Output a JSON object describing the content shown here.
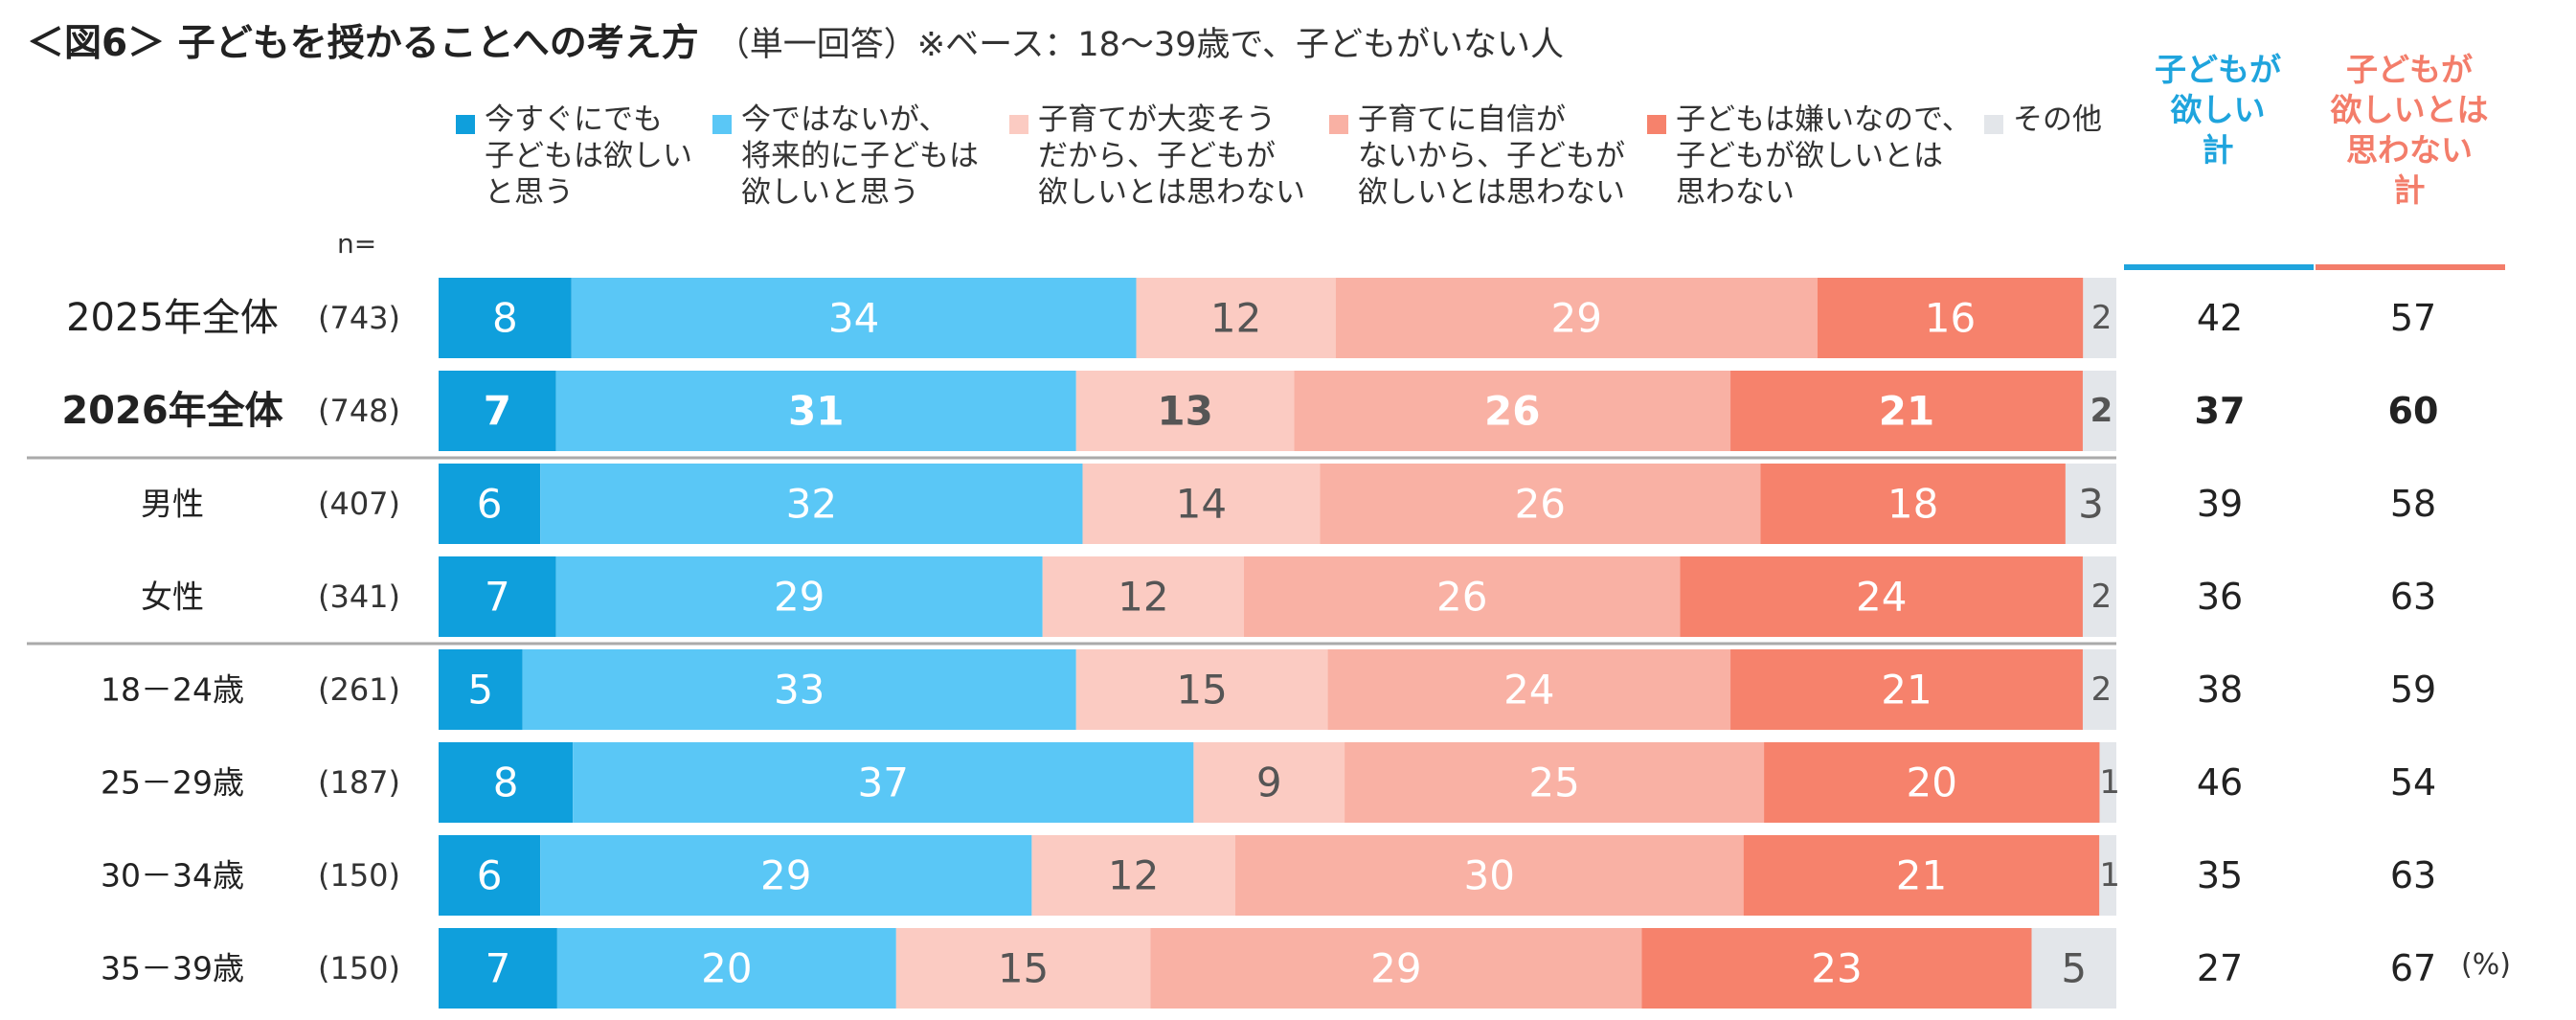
{
  "title": {
    "main": "＜図6＞ 子どもを授かることへの考え方",
    "sub": "（単一回答）※ベース：18〜39歳で、子どもがいない人"
  },
  "n_label": "n=",
  "unit_label": "(%)",
  "totals_headers": {
    "want": "子どもが\n欲しい\n計",
    "not_want": "子どもが\n欲しいとは\n思わない\n計"
  },
  "colors": {
    "seg1": "#0f9fdc",
    "seg2": "#5ac7f6",
    "seg3": "#fbcbc2",
    "seg4": "#f9b1a4",
    "seg5": "#f6826c",
    "seg6": "#e3e6ea",
    "want_header": "#1fa4dd",
    "not_want_header": "#f37d6a",
    "divider": "#aaaaaa"
  },
  "legend": [
    {
      "label": "今すぐにでも\n子どもは欲しい\nと思う",
      "icon": "square-swatch"
    },
    {
      "label": "今ではないが、\n将来的に子どもは\n欲しいと思う",
      "icon": "square-swatch"
    },
    {
      "label": "子育てが大変そう\nだから、子どもが\n欲しいとは思わない",
      "icon": "square-swatch"
    },
    {
      "label": "子育てに自信が\nないから、子どもが\n欲しいとは思わない",
      "icon": "square-swatch"
    },
    {
      "label": "子どもは嫌いなので、\n子どもが欲しいとは\n思わない",
      "icon": "square-swatch"
    },
    {
      "label": "その他",
      "icon": "square-swatch"
    }
  ],
  "chart_data": {
    "type": "bar",
    "orientation": "horizontal",
    "stacked": true,
    "xlim": [
      0,
      100
    ],
    "unit": "%",
    "series_names": [
      "今すぐにでも子どもは欲しいと思う",
      "今ではないが、将来的に子どもは欲しいと思う",
      "子育てが大変そうだから、子どもが欲しいとは思わない",
      "子育てに自信がないから、子どもが欲しいとは思わない",
      "子どもは嫌いなので、子どもが欲しいとは思わない",
      "その他"
    ],
    "rows": [
      {
        "label": "2025年全体",
        "n": "(743)",
        "bold": false,
        "values": [
          8,
          34,
          12,
          29,
          16,
          2
        ],
        "want_total": 42,
        "not_want_total": 57
      },
      {
        "label": "2026年全体",
        "n": "(748)",
        "bold": true,
        "values": [
          7,
          31,
          13,
          26,
          21,
          2
        ],
        "want_total": 37,
        "not_want_total": 60
      },
      {
        "label": "男性",
        "n": "(407)",
        "bold": false,
        "values": [
          6,
          32,
          14,
          26,
          18,
          3
        ],
        "want_total": 39,
        "not_want_total": 58
      },
      {
        "label": "女性",
        "n": "(341)",
        "bold": false,
        "values": [
          7,
          29,
          12,
          26,
          24,
          2
        ],
        "want_total": 36,
        "not_want_total": 63
      },
      {
        "label": "18－24歳",
        "n": "(261)",
        "bold": false,
        "values": [
          5,
          33,
          15,
          24,
          21,
          2
        ],
        "want_total": 38,
        "not_want_total": 59
      },
      {
        "label": "25－29歳",
        "n": "(187)",
        "bold": false,
        "values": [
          8,
          37,
          9,
          25,
          20,
          1
        ],
        "want_total": 46,
        "not_want_total": 54
      },
      {
        "label": "30－34歳",
        "n": "(150)",
        "bold": false,
        "values": [
          6,
          29,
          12,
          30,
          21,
          1
        ],
        "want_total": 35,
        "not_want_total": 63
      },
      {
        "label": "35－39歳",
        "n": "(150)",
        "bold": false,
        "values": [
          7,
          20,
          15,
          29,
          23,
          5
        ],
        "want_total": 27,
        "not_want_total": 67
      }
    ]
  }
}
